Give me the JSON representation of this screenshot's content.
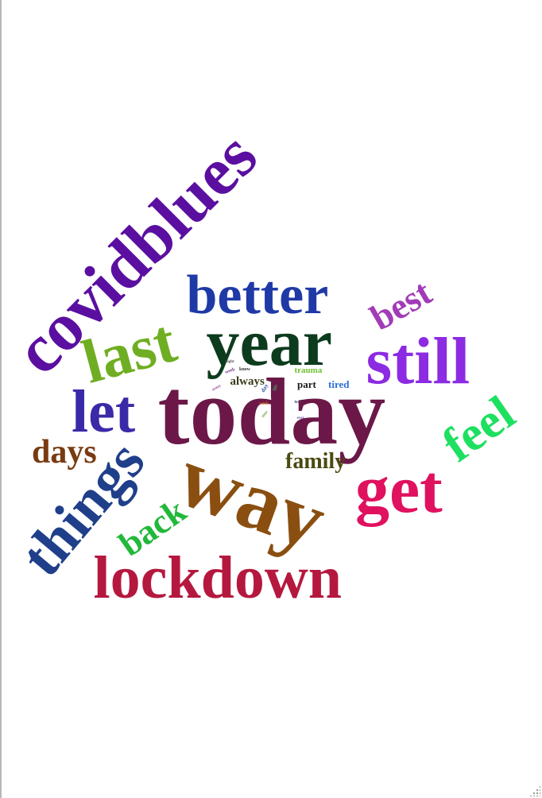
{
  "words": [
    {
      "id": "covidblues",
      "text": "covidblues",
      "color": "#5b0fa0",
      "rotation": -45
    },
    {
      "id": "better",
      "text": "better",
      "color": "#1f3aa6",
      "rotation": 0
    },
    {
      "id": "year",
      "text": "year",
      "color": "#0d3b1e",
      "rotation": 0
    },
    {
      "id": "best",
      "text": "best",
      "color": "#a23bb8",
      "rotation": -30
    },
    {
      "id": "last",
      "text": "last",
      "color": "#6fae22",
      "rotation": -15
    },
    {
      "id": "still",
      "text": "still",
      "color": "#8c2be2",
      "rotation": 0
    },
    {
      "id": "today",
      "text": "today",
      "color": "#6b1848",
      "rotation": 0
    },
    {
      "id": "let",
      "text": "let",
      "color": "#3a2aa8",
      "rotation": 0
    },
    {
      "id": "feel",
      "text": "feel",
      "color": "#1ee060",
      "rotation": -35
    },
    {
      "id": "days",
      "text": "days",
      "color": "#7a3b12",
      "rotation": 0
    },
    {
      "id": "way",
      "text": "way",
      "color": "#8a4f10",
      "rotation": 20
    },
    {
      "id": "get",
      "text": "get",
      "color": "#e0115f",
      "rotation": 0
    },
    {
      "id": "family",
      "text": "family",
      "color": "#4a4a10",
      "rotation": 0
    },
    {
      "id": "things",
      "text": "things",
      "color": "#1f3f8a",
      "rotation": -50
    },
    {
      "id": "back",
      "text": "back",
      "color": "#22b83a",
      "rotation": -35
    },
    {
      "id": "lockdown",
      "text": "lockdown",
      "color": "#b5183e",
      "rotation": 0
    },
    {
      "id": "always",
      "text": "always",
      "color": "#3a3a1a",
      "rotation": 0
    },
    {
      "id": "trauma",
      "text": "trauma",
      "color": "#70c030",
      "rotation": 0
    },
    {
      "id": "part",
      "text": "part",
      "color": "#1a1a1a",
      "rotation": 0
    },
    {
      "id": "tired",
      "text": "tired",
      "color": "#2a6fd6",
      "rotation": 0
    },
    {
      "id": "night",
      "text": "night",
      "color": "#555555",
      "rotation": 0
    },
    {
      "id": "week",
      "text": "week",
      "color": "#7a3a8a",
      "rotation": -20
    },
    {
      "id": "know",
      "text": "know",
      "color": "#333333",
      "rotation": 0
    },
    {
      "id": "every",
      "text": "every",
      "color": "#8a2a8a",
      "rotation": -30
    },
    {
      "id": "day",
      "text": "day",
      "color": "#2a4aa8",
      "rotation": -60
    },
    {
      "id": "life",
      "text": "life",
      "color": "#40a060",
      "rotation": -70
    },
    {
      "id": "love",
      "text": "love",
      "color": "#40406a",
      "rotation": 0
    },
    {
      "id": "wish",
      "text": "wish",
      "color": "#c0501a",
      "rotation": 0
    },
    {
      "id": "ever",
      "text": "ever",
      "color": "#7050a0",
      "rotation": 0
    },
    {
      "id": "time",
      "text": "time",
      "color": "#70a040",
      "rotation": -50
    }
  ]
}
